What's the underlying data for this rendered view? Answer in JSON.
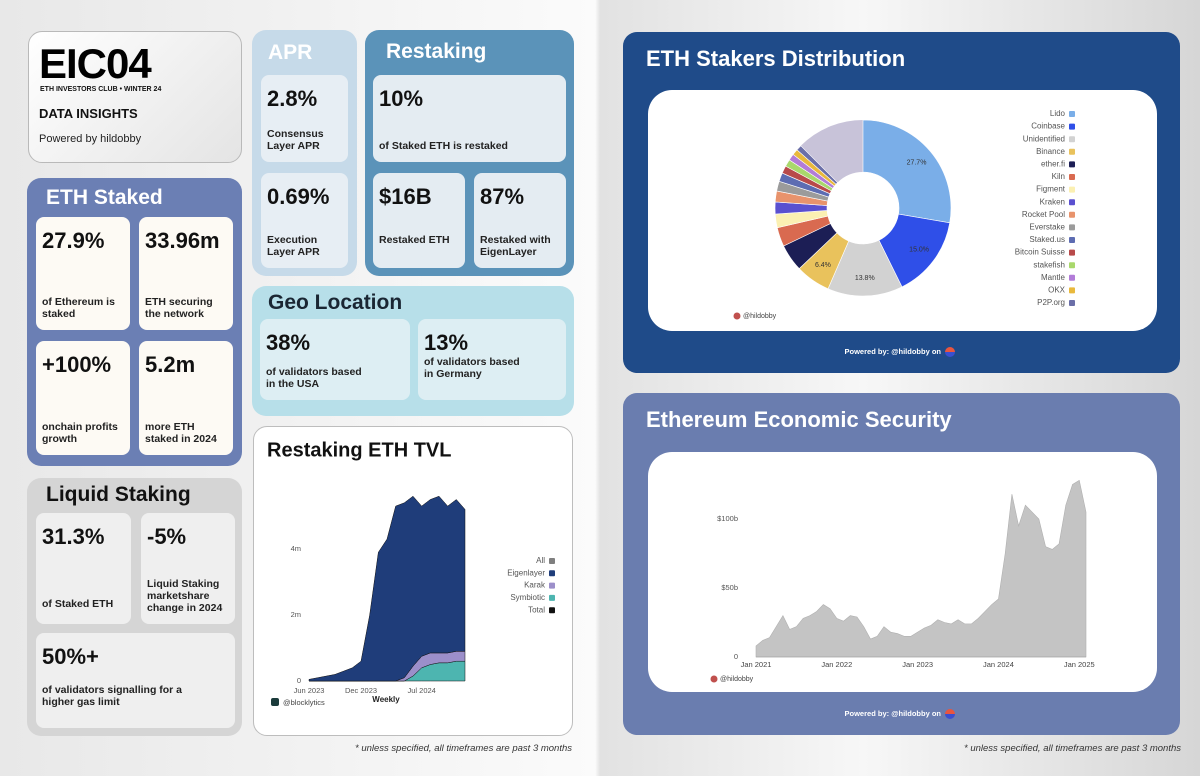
{
  "header": {
    "logo": "EIC04",
    "subtitle": "ETH INVESTORS CLUB • WINTER 24",
    "heading": "DATA INSIGHTS",
    "credit": "Powered by hildobby"
  },
  "eth_staked": {
    "title": "ETH Staked",
    "stats": [
      {
        "value": "27.9%",
        "label": "of Ethereum is staked"
      },
      {
        "value": "33.96m",
        "label": "ETH securing the network"
      },
      {
        "value": "+100%",
        "label": "onchain profits growth"
      },
      {
        "value": "5.2m",
        "label": "more ETH staked in 2024"
      }
    ]
  },
  "liquid_staking": {
    "title": "Liquid Staking",
    "stats": [
      {
        "value": "31.3%",
        "label": "of Staked ETH"
      },
      {
        "value": "-5%",
        "label": "Liquid Staking marketshare change in 2024"
      },
      {
        "value": "50%+",
        "label": "of validators signalling for a higher gas limit"
      }
    ]
  },
  "apr": {
    "title": "APR",
    "stats": [
      {
        "value": "2.8%",
        "label": "Consensus Layer APR"
      },
      {
        "value": "0.69%",
        "label": "Execution Layer APR"
      }
    ]
  },
  "restaking": {
    "title": "Restaking",
    "stats": [
      {
        "value": "10%",
        "label": "of Staked ETH is restaked"
      },
      {
        "value": "$16B",
        "label": "Restaked ETH"
      },
      {
        "value": "87%",
        "label": "Restaked with EigenLayer"
      }
    ]
  },
  "geo_location": {
    "title": "Geo Location",
    "stats": [
      {
        "value": "38%",
        "label": "of validators based in the USA"
      },
      {
        "value": "13%",
        "label": "of validators based in Germany"
      }
    ]
  },
  "footnotes": [
    "* unless specified, all timeframes are past 3 months",
    "* unless specified, all timeframes are past 3 months"
  ],
  "chart_data": [
    {
      "type": "pie",
      "title": "ETH Stakers Distribution",
      "categories": [
        "Lido",
        "Coinbase",
        "Unidentified",
        "Binance",
        "ether.fi",
        "Kiln",
        "Figment",
        "Kraken",
        "Rocket Pool",
        "Everstake",
        "Staked.us",
        "Bitcoin Suisse",
        "stakefish",
        "Mantle",
        "OKX",
        "P2P.org"
      ],
      "values": [
        27.7,
        15.0,
        13.8,
        6.4,
        5.0,
        3.5,
        2.5,
        2.2,
        2.0,
        1.8,
        1.6,
        1.4,
        1.3,
        1.2,
        1.1,
        1.0
      ],
      "value_labels": [
        "27.7%",
        "15.0%",
        "13.8%",
        "6.4%",
        null,
        null,
        null,
        null,
        null,
        null,
        null,
        null,
        null,
        null,
        null,
        null
      ],
      "colors": [
        "#7aaee8",
        "#2f4fe8",
        "#d2d2d2",
        "#e9c25c",
        "#1c1e55",
        "#d96a50",
        "#fbf0b2",
        "#5a50d0",
        "#e8936c",
        "#9b9b9b",
        "#5d6cb2",
        "#b84a4a",
        "#a9d86c",
        "#b27cd8",
        "#e9b93c",
        "#6b6fa8"
      ],
      "source": "@hildobby",
      "powered_by": "Powered by: @hildobby on"
    },
    {
      "type": "stacked-area",
      "title": "Restaking ETH TVL",
      "categories": [
        "Jun 2023",
        null,
        null,
        null,
        null,
        null,
        "Dec 2023",
        null,
        null,
        null,
        null,
        null,
        null,
        "Jul 2024",
        null,
        null,
        null,
        null,
        null
      ],
      "x_label": "Weekly",
      "series": [
        {
          "name": "Eigenlayer",
          "color": "#1f3d7a",
          "values": [
            0.05,
            0.1,
            0.15,
            0.2,
            0.3,
            0.4,
            0.6,
            2.0,
            3.9,
            4.3,
            5.3,
            5.3,
            5.15,
            4.55,
            4.65,
            4.75,
            4.45,
            4.6,
            4.3
          ]
        },
        {
          "name": "Karak",
          "color": "#9c8fca",
          "values": [
            0,
            0,
            0,
            0,
            0,
            0,
            0,
            0,
            0,
            0,
            0,
            0.1,
            0.3,
            0.35,
            0.35,
            0.3,
            0.3,
            0.3,
            0.3
          ]
        },
        {
          "name": "Symbiotic",
          "color": "#4db5b0",
          "values": [
            0,
            0,
            0,
            0,
            0,
            0,
            0,
            0,
            0,
            0,
            0,
            0,
            0.15,
            0.4,
            0.5,
            0.55,
            0.55,
            0.6,
            0.6
          ]
        }
      ],
      "extra_legend": [
        {
          "name": "All",
          "color": "#7f7f7f"
        },
        {
          "name": "Total",
          "color": "#111111"
        }
      ],
      "ylim": [
        0,
        5.8
      ],
      "yticks": [
        0,
        {
          "value": 2,
          "label": "2m"
        },
        {
          "value": 4,
          "label": "4m"
        }
      ],
      "source": "@blocklytics"
    },
    {
      "type": "area",
      "title": "Ethereum Economic Security",
      "categories": [
        "Jan 2021",
        null,
        null,
        null,
        null,
        null,
        null,
        null,
        null,
        null,
        null,
        null,
        "Jan 2022",
        null,
        null,
        null,
        null,
        null,
        null,
        null,
        null,
        null,
        null,
        null,
        "Jan 2023",
        null,
        null,
        null,
        null,
        null,
        null,
        null,
        null,
        null,
        null,
        null,
        "Jan 2024",
        null,
        null,
        null,
        null,
        null,
        null,
        null,
        null,
        null,
        null,
        null,
        "Jan 2025",
        null
      ],
      "values": [
        8,
        12,
        14,
        22,
        30,
        20,
        22,
        28,
        30,
        33,
        38,
        35,
        28,
        26,
        30,
        29,
        22,
        13,
        15,
        22,
        18,
        17,
        15,
        15,
        18,
        21,
        23,
        27,
        25,
        24,
        27,
        24,
        24,
        28,
        33,
        38,
        42,
        75,
        118,
        95,
        110,
        105,
        100,
        80,
        78,
        82,
        110,
        125,
        128,
        105
      ],
      "color": "#c4c4c4",
      "ylim": [
        0,
        140
      ],
      "yticks": [
        0,
        {
          "value": 50,
          "label": "$50b"
        },
        {
          "value": 100,
          "label": "$100b"
        }
      ],
      "source": "@hildobby",
      "powered_by": "Powered by: @hildobby on"
    }
  ]
}
